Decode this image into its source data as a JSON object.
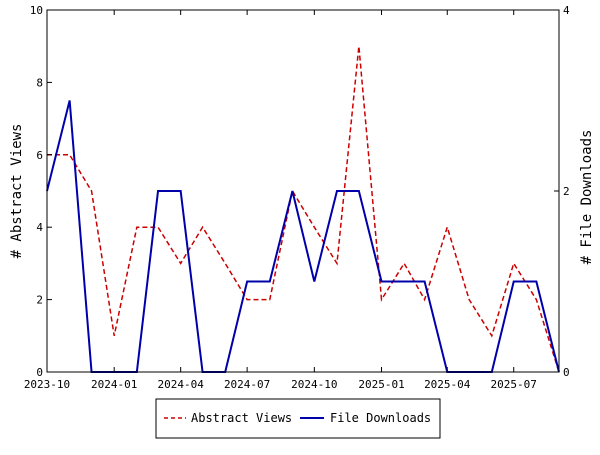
{
  "chart_data": {
    "type": "line",
    "x_type": "date",
    "x_tick_labels": [
      "2023-10",
      "2024-01",
      "2024-04",
      "2024-07",
      "2024-10",
      "2025-01",
      "2025-04",
      "2025-07"
    ],
    "x_ticks": [
      "2023-10-01",
      "2024-01-01",
      "2024-04-01",
      "2024-07-01",
      "2024-10-01",
      "2025-01-01",
      "2025-04-01",
      "2025-07-01"
    ],
    "xlim": [
      "2023-10-01",
      "2025-09-01"
    ],
    "grid": false,
    "legend_position": "bottom",
    "left_axis": {
      "label": "# Abstract Views",
      "range": [
        0,
        10
      ],
      "ticks": [
        "0",
        "2",
        "4",
        "6",
        "8",
        "10"
      ]
    },
    "right_axis": {
      "label": "# File Downloads",
      "range": [
        0,
        4
      ],
      "ticks": [
        "0",
        "2",
        "4"
      ]
    },
    "x": [
      "2023-10-01",
      "2023-11-01",
      "2023-12-01",
      "2024-01-01",
      "2024-02-01",
      "2024-03-01",
      "2024-04-01",
      "2024-05-01",
      "2024-06-01",
      "2024-07-01",
      "2024-08-01",
      "2024-09-01",
      "2024-10-01",
      "2024-11-01",
      "2024-12-01",
      "2025-01-01",
      "2025-02-01",
      "2025-03-01",
      "2025-04-01",
      "2025-05-01",
      "2025-06-01",
      "2025-07-01",
      "2025-08-01",
      "2025-09-01"
    ],
    "series": [
      {
        "name": "Abstract Views",
        "axis": "left",
        "color": "#cc0000",
        "style": "dashed",
        "values": [
          6,
          6,
          5,
          1,
          4,
          4,
          3,
          4,
          3,
          2,
          2,
          5,
          4,
          3,
          9,
          2,
          3,
          2,
          4,
          2,
          1,
          3,
          2,
          0
        ]
      },
      {
        "name": "File Downloads",
        "axis": "right",
        "color": "#0000aa",
        "style": "solid",
        "values": [
          2,
          3,
          0,
          0,
          0,
          2,
          2,
          0,
          0,
          1,
          1,
          2,
          1,
          2,
          2,
          1,
          1,
          1,
          0,
          0,
          0,
          1,
          1,
          0
        ]
      }
    ]
  }
}
